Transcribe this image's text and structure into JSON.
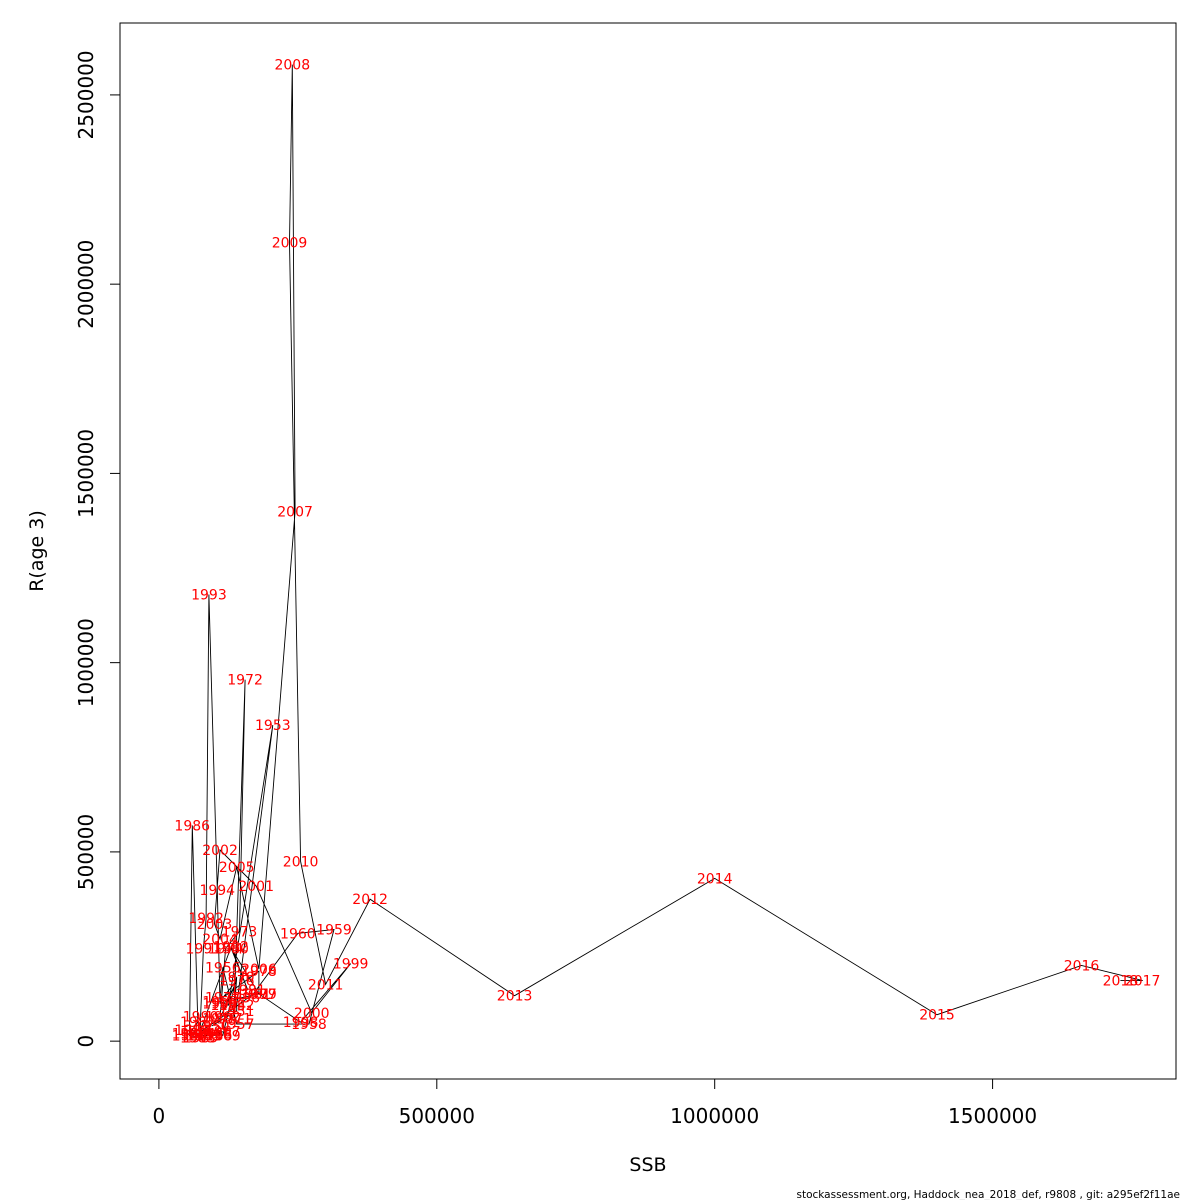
{
  "chart_data": {
    "type": "line",
    "title": "",
    "xlabel": "SSB",
    "ylabel": "R(age 3)",
    "xlim": [
      -70000,
      1830000
    ],
    "ylim": [
      -100000,
      2690000
    ],
    "x_ticks": [
      0,
      500000,
      1000000,
      1500000
    ],
    "x_tick_labels": [
      "0",
      "500000",
      "1000000",
      "1500000"
    ],
    "y_ticks": [
      0,
      500000,
      1000000,
      1500000,
      2000000,
      2500000
    ],
    "y_tick_labels": [
      "0",
      "500000",
      "1000000",
      "1500000",
      "2000000",
      "2500000"
    ],
    "grid": false,
    "line_color": "#000000",
    "label_color": "#ff0000",
    "points": [
      {
        "year": "1950",
        "ssb": 95000,
        "r": 40000
      },
      {
        "year": "1951",
        "ssb": 140000,
        "r": 80000
      },
      {
        "year": "1952",
        "ssb": 140000,
        "r": 95000
      },
      {
        "year": "1953",
        "ssb": 205000,
        "r": 835000
      },
      {
        "year": "1954",
        "ssb": 125000,
        "r": 95000
      },
      {
        "year": "1955",
        "ssb": 110000,
        "r": 105000
      },
      {
        "year": "1956",
        "ssb": 115000,
        "r": 195000
      },
      {
        "year": "1957",
        "ssb": 140000,
        "r": 45000
      },
      {
        "year": "1958",
        "ssb": 270000,
        "r": 45000
      },
      {
        "year": "1959",
        "ssb": 315000,
        "r": 295000
      },
      {
        "year": "1960",
        "ssb": 250000,
        "r": 285000
      },
      {
        "year": "1961",
        "ssb": 170000,
        "r": 125000
      },
      {
        "year": "1962",
        "ssb": 115000,
        "r": 65000
      },
      {
        "year": "1963",
        "ssb": 80000,
        "r": 30000
      },
      {
        "year": "1964",
        "ssb": 70000,
        "r": 20000
      },
      {
        "year": "1965",
        "ssb": 80000,
        "r": 15000
      },
      {
        "year": "1966",
        "ssb": 100000,
        "r": 15000
      },
      {
        "year": "1967",
        "ssb": 115000,
        "r": 25000
      },
      {
        "year": "1968",
        "ssb": 100000,
        "r": 20000
      },
      {
        "year": "1969",
        "ssb": 115000,
        "r": 15000
      },
      {
        "year": "1970",
        "ssb": 140000,
        "r": 170000
      },
      {
        "year": "1971",
        "ssb": 135000,
        "r": 60000
      },
      {
        "year": "1972",
        "ssb": 155000,
        "r": 955000
      },
      {
        "year": "1973",
        "ssb": 145000,
        "r": 290000
      },
      {
        "year": "1974",
        "ssb": 120000,
        "r": 245000
      },
      {
        "year": "1975",
        "ssb": 110000,
        "r": 60000
      },
      {
        "year": "1976",
        "ssb": 140000,
        "r": 160000
      },
      {
        "year": "1977",
        "ssb": 115000,
        "r": 115000
      },
      {
        "year": "1978",
        "ssb": 180000,
        "r": 185000
      },
      {
        "year": "1979",
        "ssb": 180000,
        "r": 125000
      },
      {
        "year": "1980",
        "ssb": 130000,
        "r": 245000
      },
      {
        "year": "1981",
        "ssb": 160000,
        "r": 135000
      },
      {
        "year": "1982",
        "ssb": 130000,
        "r": 250000
      },
      {
        "year": "1983",
        "ssb": 70000,
        "r": 10000
      },
      {
        "year": "1984",
        "ssb": 55000,
        "r": 15000
      },
      {
        "year": "1985",
        "ssb": 55000,
        "r": 20000
      },
      {
        "year": "1986",
        "ssb": 60000,
        "r": 570000
      },
      {
        "year": "1987",
        "ssb": 70000,
        "r": 50000
      },
      {
        "year": "1988",
        "ssb": 60000,
        "r": 30000
      },
      {
        "year": "1989",
        "ssb": 75000,
        "r": 10000
      },
      {
        "year": "1990",
        "ssb": 75000,
        "r": 65000
      },
      {
        "year": "1991",
        "ssb": 80000,
        "r": 245000
      },
      {
        "year": "1992",
        "ssb": 85000,
        "r": 325000
      },
      {
        "year": "1993",
        "ssb": 90000,
        "r": 1180000
      },
      {
        "year": "1994",
        "ssb": 105000,
        "r": 400000
      },
      {
        "year": "1995",
        "ssb": 110000,
        "r": 100000
      },
      {
        "year": "1996",
        "ssb": 150000,
        "r": 115000
      },
      {
        "year": "1997",
        "ssb": 180000,
        "r": 125000
      },
      {
        "year": "1998",
        "ssb": 255000,
        "r": 50000
      },
      {
        "year": "1999",
        "ssb": 345000,
        "r": 205000
      },
      {
        "year": "2000",
        "ssb": 275000,
        "r": 75000
      },
      {
        "year": "2001",
        "ssb": 175000,
        "r": 410000
      },
      {
        "year": "2002",
        "ssb": 110000,
        "r": 505000
      },
      {
        "year": "2003",
        "ssb": 100000,
        "r": 310000
      },
      {
        "year": "2004",
        "ssb": 110000,
        "r": 270000
      },
      {
        "year": "2005",
        "ssb": 140000,
        "r": 460000
      },
      {
        "year": "2006",
        "ssb": 180000,
        "r": 190000
      },
      {
        "year": "2007",
        "ssb": 245000,
        "r": 1400000
      },
      {
        "year": "2008",
        "ssb": 240000,
        "r": 2580000
      },
      {
        "year": "2009",
        "ssb": 235000,
        "r": 2110000
      },
      {
        "year": "2010",
        "ssb": 255000,
        "r": 475000
      },
      {
        "year": "2011",
        "ssb": 300000,
        "r": 150000
      },
      {
        "year": "2012",
        "ssb": 380000,
        "r": 375000
      },
      {
        "year": "2013",
        "ssb": 640000,
        "r": 120000
      },
      {
        "year": "2014",
        "ssb": 1000000,
        "r": 430000
      },
      {
        "year": "2015",
        "ssb": 1400000,
        "r": 70000
      },
      {
        "year": "2016",
        "ssb": 1660000,
        "r": 200000
      },
      {
        "year": "2017",
        "ssb": 1770000,
        "r": 160000
      },
      {
        "year": "2018",
        "ssb": 1730000,
        "r": 160000
      }
    ]
  },
  "footer": {
    "text": "stockassessment.org, Haddock_nea_2018_def, r9808 , git: a295ef2f11ae"
  }
}
